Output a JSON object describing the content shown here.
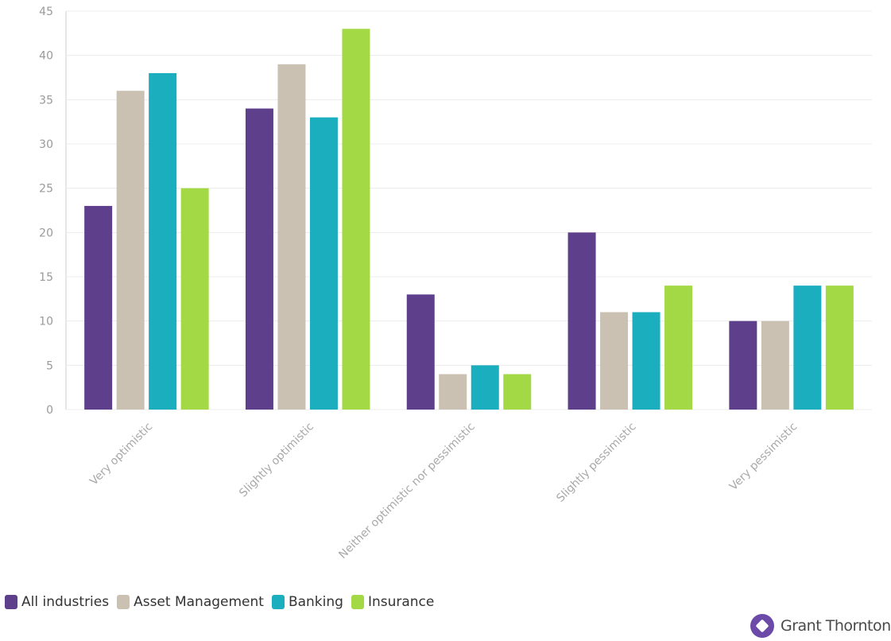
{
  "chart_data": {
    "type": "bar",
    "categories": [
      "Very optimistic",
      "Slightly optimistic",
      "Neither optimistic nor pessimistic",
      "Slightly pessimistic",
      "Very pessimistic"
    ],
    "series": [
      {
        "name": "All industries",
        "color": "#5e3f8c",
        "values": [
          23,
          34,
          13,
          20,
          10
        ]
      },
      {
        "name": "Asset Management",
        "color": "#cbc1b2",
        "values": [
          36,
          39,
          4,
          11,
          10
        ]
      },
      {
        "name": "Banking",
        "color": "#1aaebf",
        "values": [
          38,
          33,
          5,
          11,
          14
        ]
      },
      {
        "name": "Insurance",
        "color": "#a3d944",
        "values": [
          25,
          43,
          4,
          14,
          14
        ]
      }
    ],
    "ylim": [
      0,
      45
    ],
    "yticks": [
      "0",
      "5",
      "10",
      "15",
      "20",
      "25",
      "30",
      "35",
      "40",
      "45"
    ],
    "grid": true,
    "legend_position": "bottom-left"
  },
  "brand": {
    "name": "Grant Thornton",
    "logo_color": "#6b4aa8"
  }
}
